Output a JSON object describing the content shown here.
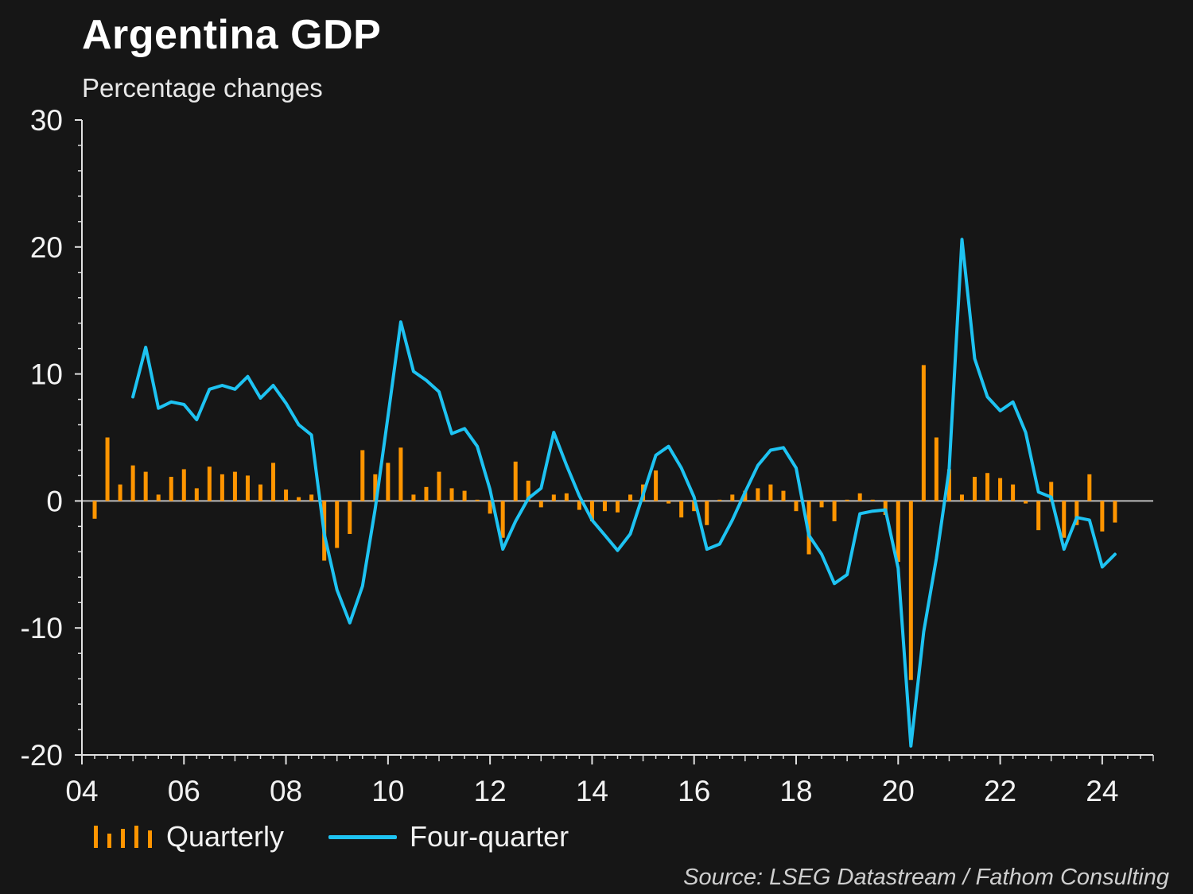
{
  "title": "Argentina GDP",
  "subtitle": "Percentage changes",
  "source": "Source: LSEG Datastream / Fathom Consulting",
  "colors": {
    "background": "#161616",
    "quarterly": "#ff9500",
    "four_quarter": "#1ec3f2",
    "axis": "#e0e0e0",
    "zero_line": "#bdbdbd"
  },
  "chart_data": {
    "type": "bar",
    "title": "Argentina GDP",
    "subtitle": "Percentage changes",
    "xlabel": "",
    "ylabel": "",
    "ylim": [
      -20,
      30
    ],
    "xlim": [
      2004.0,
      2025.0
    ],
    "y_ticks": [
      "30",
      "20",
      "10",
      "0",
      "-10",
      "-20"
    ],
    "x_ticks": [
      "04",
      "06",
      "08",
      "10",
      "12",
      "14",
      "16",
      "18",
      "20",
      "22",
      "24"
    ],
    "grid": false,
    "legend_position": "bottom-left",
    "series": [
      {
        "name": "Quarterly",
        "type": "bar",
        "x": [
          2004.25,
          2004.5,
          2004.75,
          2005.0,
          2005.25,
          2005.5,
          2005.75,
          2006.0,
          2006.25,
          2006.5,
          2006.75,
          2007.0,
          2007.25,
          2007.5,
          2007.75,
          2008.0,
          2008.25,
          2008.5,
          2008.75,
          2009.0,
          2009.25,
          2009.5,
          2009.75,
          2010.0,
          2010.25,
          2010.5,
          2010.75,
          2011.0,
          2011.25,
          2011.5,
          2011.75,
          2012.0,
          2012.25,
          2012.5,
          2012.75,
          2013.0,
          2013.25,
          2013.5,
          2013.75,
          2014.0,
          2014.25,
          2014.5,
          2014.75,
          2015.0,
          2015.25,
          2015.5,
          2015.75,
          2016.0,
          2016.25,
          2016.5,
          2016.75,
          2017.0,
          2017.25,
          2017.5,
          2017.75,
          2018.0,
          2018.25,
          2018.5,
          2018.75,
          2019.0,
          2019.25,
          2019.5,
          2019.75,
          2020.0,
          2020.25,
          2020.5,
          2020.75,
          2021.0,
          2021.25,
          2021.5,
          2021.75,
          2022.0,
          2022.25,
          2022.5,
          2022.75,
          2023.0,
          2023.25,
          2023.5,
          2023.75,
          2024.0,
          2024.25
        ],
        "values": [
          -1.4,
          5.0,
          1.3,
          2.8,
          2.3,
          0.5,
          1.9,
          2.5,
          1.0,
          2.7,
          2.1,
          2.3,
          2.0,
          1.3,
          3.0,
          0.9,
          0.3,
          0.5,
          -4.7,
          -3.7,
          -2.6,
          4.0,
          2.1,
          3.0,
          4.2,
          0.5,
          1.1,
          2.3,
          1.0,
          0.8,
          0.1,
          -1.0,
          -2.9,
          3.1,
          1.6,
          -0.5,
          0.5,
          0.6,
          -0.7,
          -1.6,
          -0.8,
          -0.9,
          0.5,
          1.3,
          2.4,
          -0.2,
          -1.3,
          -0.8,
          -1.9,
          0.1,
          0.5,
          0.8,
          1.0,
          1.3,
          0.8,
          -0.8,
          -4.2,
          -0.5,
          -1.6,
          0.1,
          0.6,
          0.1,
          -1.1,
          -4.8,
          -14.1,
          10.7,
          5.0,
          2.5,
          0.5,
          1.9,
          2.2,
          1.8,
          1.3,
          -0.2,
          -2.3,
          1.5,
          -2.9,
          -1.9,
          2.1,
          -2.4,
          -1.7
        ]
      },
      {
        "name": "Four-quarter",
        "type": "line",
        "x": [
          2005.0,
          2005.25,
          2005.5,
          2005.75,
          2006.0,
          2006.25,
          2006.5,
          2006.75,
          2007.0,
          2007.25,
          2007.5,
          2007.75,
          2008.0,
          2008.25,
          2008.5,
          2008.75,
          2009.0,
          2009.25,
          2009.5,
          2009.75,
          2010.0,
          2010.25,
          2010.5,
          2010.75,
          2011.0,
          2011.25,
          2011.5,
          2011.75,
          2012.0,
          2012.25,
          2012.5,
          2012.75,
          2013.0,
          2013.25,
          2013.5,
          2013.75,
          2014.0,
          2014.25,
          2014.5,
          2014.75,
          2015.0,
          2015.25,
          2015.5,
          2015.75,
          2016.0,
          2016.25,
          2016.5,
          2016.75,
          2017.0,
          2017.25,
          2017.5,
          2017.75,
          2018.0,
          2018.25,
          2018.5,
          2018.75,
          2019.0,
          2019.25,
          2019.5,
          2019.75,
          2020.0,
          2020.25,
          2020.5,
          2020.75,
          2021.0,
          2021.25,
          2021.5,
          2021.75,
          2022.0,
          2022.25,
          2022.5,
          2022.75,
          2023.0,
          2023.25,
          2023.5,
          2023.75,
          2024.0,
          2024.25
        ],
        "values": [
          8.2,
          12.1,
          7.3,
          7.8,
          7.6,
          6.4,
          8.8,
          9.1,
          8.8,
          9.8,
          8.1,
          9.1,
          7.7,
          6.0,
          5.2,
          -2.6,
          -7.0,
          -9.6,
          -6.7,
          -0.6,
          6.7,
          14.1,
          10.2,
          9.5,
          8.6,
          5.3,
          5.7,
          4.3,
          0.9,
          -3.8,
          -1.6,
          0.2,
          1.0,
          5.4,
          2.8,
          0.4,
          -1.5,
          -2.7,
          -3.9,
          -2.6,
          0.5,
          3.6,
          4.3,
          2.6,
          0.3,
          -3.8,
          -3.4,
          -1.5,
          0.7,
          2.8,
          4.0,
          4.2,
          2.6,
          -2.7,
          -4.2,
          -6.5,
          -5.8,
          -1.0,
          -0.8,
          -0.7,
          -5.3,
          -19.3,
          -10.3,
          -4.5,
          2.5,
          20.6,
          11.2,
          8.2,
          7.1,
          7.8,
          5.4,
          0.7,
          0.3,
          -3.8,
          -1.3,
          -1.5,
          -5.2,
          -4.2
        ]
      }
    ]
  },
  "legend": {
    "quarterly_label": "Quarterly",
    "four_quarter_label": "Four-quarter"
  }
}
